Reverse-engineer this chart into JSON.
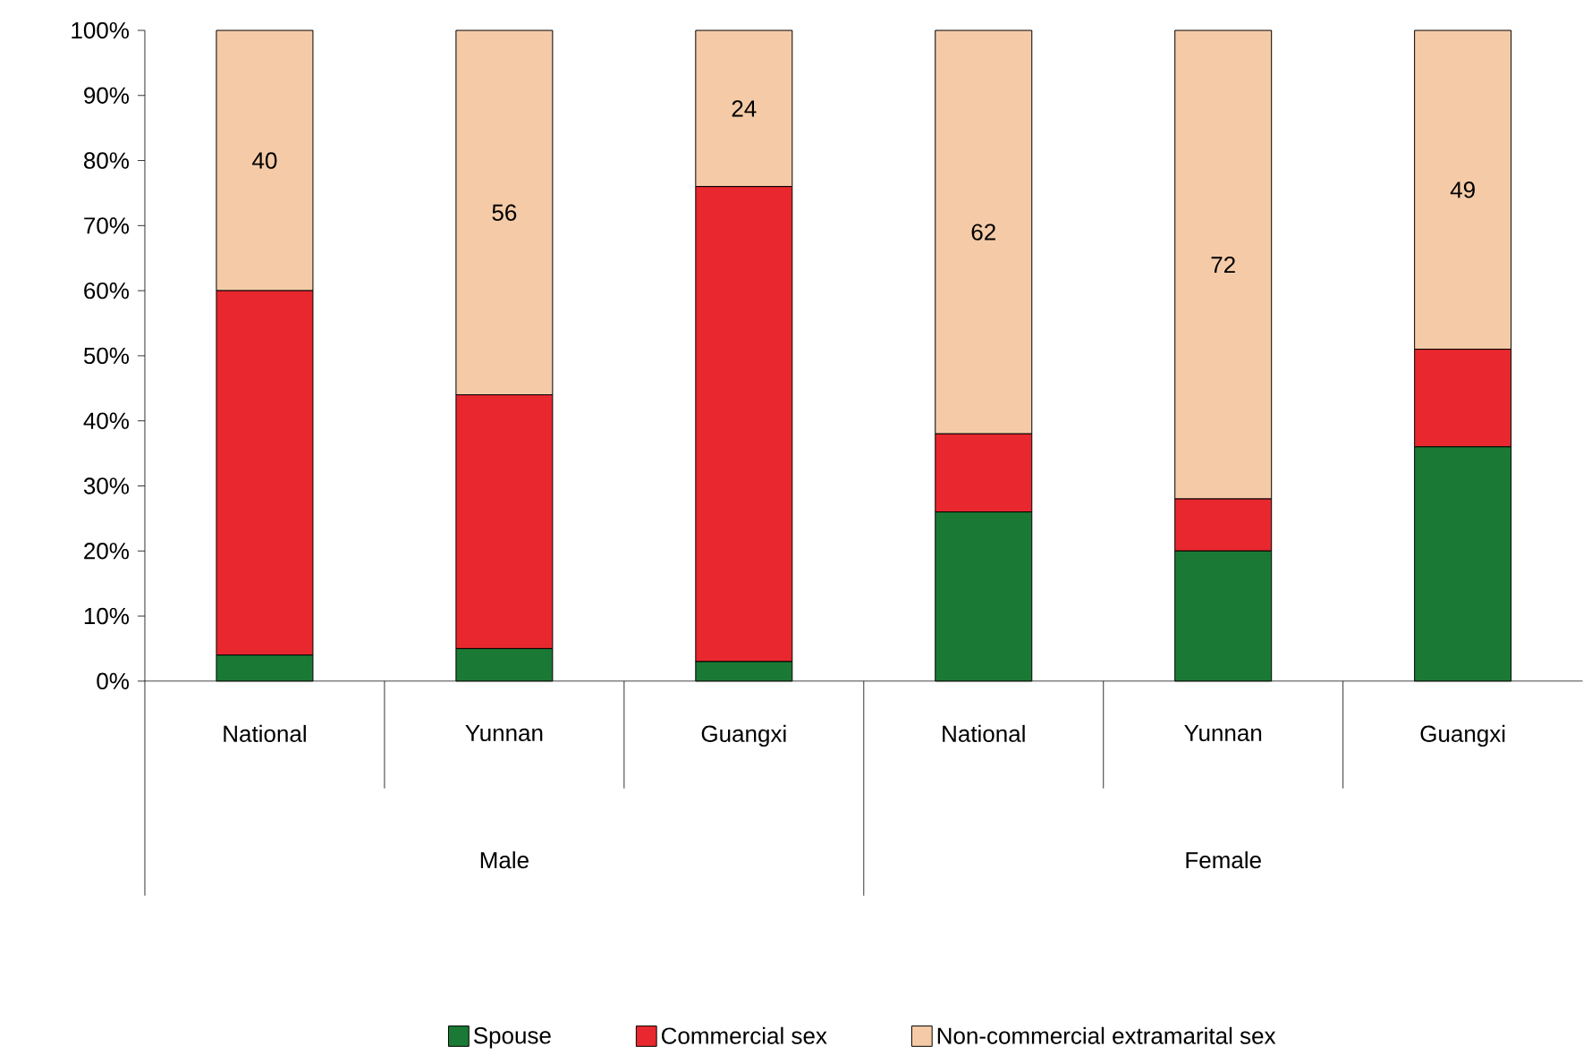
{
  "chart_data": {
    "type": "bar",
    "stacked": true,
    "categories": [
      "National",
      "Yunnan",
      "Guangxi",
      "National",
      "Yunnan",
      "Guangxi"
    ],
    "series": [
      {
        "name": "Spouse",
        "color": "#1a7a35",
        "values": [
          4,
          5,
          3,
          26,
          20,
          36
        ]
      },
      {
        "name": "Commercial sex",
        "color": "#e8282e",
        "values": [
          56,
          39,
          73,
          12,
          8,
          15
        ]
      },
      {
        "name": "Non-commercial extramarital sex",
        "color": "#f5cba7",
        "values": [
          40,
          56,
          24,
          62,
          72,
          49
        ],
        "value_labels": [
          "40",
          "56",
          "24",
          "62",
          "72",
          "49"
        ]
      }
    ],
    "ylim": [
      0,
      100
    ],
    "yticks": [
      {
        "value": 0,
        "label": "0%"
      },
      {
        "value": 10,
        "label": "10%"
      },
      {
        "value": 20,
        "label": "20%"
      },
      {
        "value": 30,
        "label": "30%"
      },
      {
        "value": 40,
        "label": "40%"
      },
      {
        "value": 50,
        "label": "50%"
      },
      {
        "value": 60,
        "label": "60%"
      },
      {
        "value": 70,
        "label": "70%"
      },
      {
        "value": 80,
        "label": "80%"
      },
      {
        "value": 90,
        "label": "90%"
      },
      {
        "value": 100,
        "label": "100%"
      }
    ],
    "annotations": [
      "Male",
      "Female"
    ],
    "legend": "bottom",
    "grid": false
  }
}
